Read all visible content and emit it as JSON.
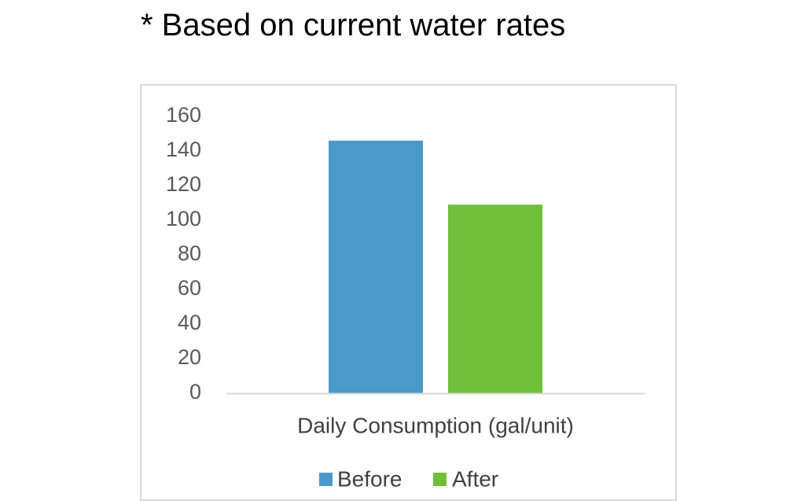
{
  "note": "* Based on current water rates",
  "chart_data": {
    "type": "bar",
    "categories": [
      "Daily Consumption (gal/unit)"
    ],
    "series": [
      {
        "name": "Before",
        "values": [
          146
        ],
        "color": "#4a9ac9"
      },
      {
        "name": "After",
        "values": [
          109
        ],
        "color": "#6fbf3a"
      }
    ],
    "title": "",
    "xlabel": "Daily Consumption (gal/unit)",
    "ylabel": "",
    "ylim": [
      0,
      160
    ],
    "yticks": [
      "0",
      "20",
      "40",
      "60",
      "80",
      "100",
      "120",
      "140",
      "160"
    ],
    "grid": false,
    "legend_position": "bottom"
  }
}
